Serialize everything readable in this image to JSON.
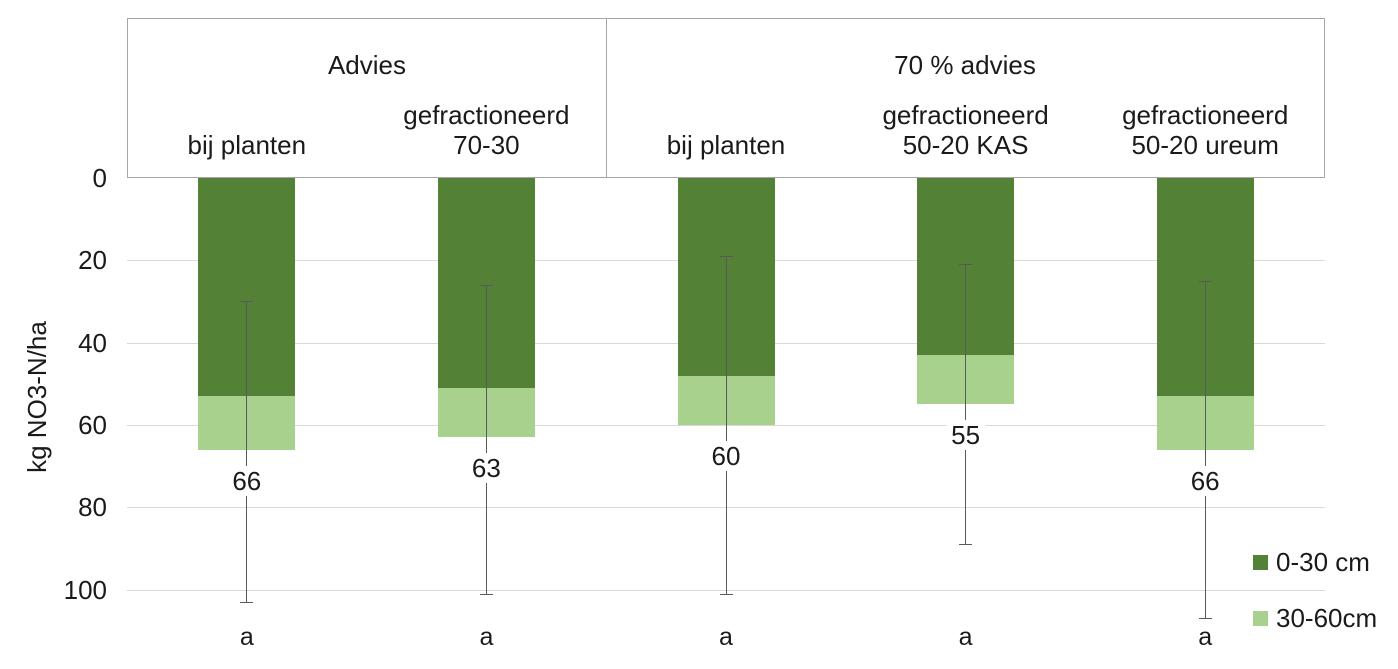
{
  "chart_data": {
    "type": "bar",
    "subtype": "stacked-column",
    "value_axis_inverted": true,
    "title": "",
    "xlabel": "",
    "ylabel": "kg NO3-N/ha",
    "y_axis": {
      "min": 0,
      "max": 100,
      "tick_step": 20,
      "inverted": true,
      "ticks": [
        "0",
        "20",
        "40",
        "60",
        "80",
        "100"
      ],
      "tick_values": [
        0,
        20,
        40,
        60,
        80,
        100
      ],
      "grid": true
    },
    "groups": [
      {
        "title": "Advies",
        "category_indexes": [
          0,
          1
        ]
      },
      {
        "title": "70 % advies",
        "category_indexes": [
          2,
          3,
          4
        ]
      }
    ],
    "categories": [
      {
        "group": "Advies",
        "lines": [
          "bij planten"
        ]
      },
      {
        "group": "Advies",
        "lines": [
          "gefractioneerd",
          "70-30"
        ]
      },
      {
        "group": "70 % advies",
        "lines": [
          "bij planten"
        ]
      },
      {
        "group": "70 % advies",
        "lines": [
          "gefractioneerd",
          "50-20 KAS"
        ]
      },
      {
        "group": "70 % advies",
        "lines": [
          "gefractioneerd",
          "50-20 ureum"
        ]
      }
    ],
    "series": [
      {
        "name": "0-30 cm",
        "color": "#538135",
        "values": [
          53,
          51,
          48,
          43,
          53
        ]
      },
      {
        "name": "30-60cm",
        "color": "#A9D18E",
        "values": [
          13,
          12,
          12,
          12,
          13
        ]
      }
    ],
    "totals": [
      66,
      63,
      60,
      55,
      66
    ],
    "total_labels": [
      "66",
      "63",
      "60",
      "55",
      "66"
    ],
    "error_bars": {
      "upper_ends": [
        30,
        26,
        19,
        21,
        25
      ],
      "lower_ends": [
        103,
        101,
        101,
        89,
        107
      ]
    },
    "significance_letters": [
      "a",
      "a",
      "a",
      "a",
      "a"
    ],
    "legend": {
      "position": "bottom-right",
      "entries": [
        {
          "label": "0-30 cm",
          "color": "#538135"
        },
        {
          "label": "30-60cm",
          "color": "#A9D18E"
        }
      ]
    }
  },
  "colors": {
    "bar_dark_green": "#538135",
    "bar_light_green": "#A9D18E",
    "gridline": "#D9D9D9",
    "axis_and_box_border": "#A6A6A6",
    "error_bar": "#595959",
    "text": "#1A1A1A",
    "background": "#FFFFFF"
  }
}
